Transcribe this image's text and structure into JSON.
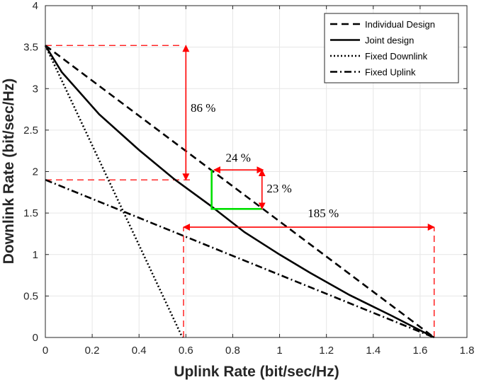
{
  "chart_data": {
    "type": "line",
    "title": "",
    "xlabel": "Uplink Rate (bit/sec/Hz)",
    "ylabel": "Downlink Rate (bit/sec/Hz)",
    "xlim": [
      0,
      1.8
    ],
    "ylim": [
      0,
      4
    ],
    "xticks": [
      0,
      0.2,
      0.4,
      0.6,
      0.8,
      1,
      1.2,
      1.4,
      1.6,
      1.8
    ],
    "xtick_labels": [
      "0",
      "0.2",
      "0.4",
      "0.6",
      "0.8",
      "1",
      "1.2",
      "1.4",
      "1.6",
      "1.8"
    ],
    "yticks": [
      0,
      0.5,
      1,
      1.5,
      2,
      2.5,
      3,
      3.5,
      4
    ],
    "ytick_labels": [
      "0",
      "0.5",
      "1",
      "1.5",
      "2",
      "2.5",
      "3",
      "3.5",
      "4"
    ],
    "grid": true,
    "legend_position": "top-right",
    "series": [
      {
        "name": "Individual Design",
        "style": "dashed",
        "color": "#000000",
        "x": [
          0,
          1.66
        ],
        "y": [
          3.52,
          0
        ]
      },
      {
        "name": "Joint design",
        "style": "solid",
        "color": "#000000",
        "x": [
          0,
          0.07,
          0.23,
          0.4,
          0.55,
          0.7,
          0.85,
          1.0,
          1.13,
          1.3,
          1.48,
          1.66
        ],
        "y": [
          3.52,
          3.2,
          2.69,
          2.26,
          1.91,
          1.6,
          1.27,
          1.0,
          0.78,
          0.51,
          0.26,
          0.0
        ]
      },
      {
        "name": "Fixed Downlink",
        "style": "dotted",
        "color": "#000000",
        "x": [
          0,
          0.585
        ],
        "y": [
          3.52,
          0
        ]
      },
      {
        "name": "Fixed Uplink",
        "style": "dashdot",
        "color": "#000000",
        "x": [
          0,
          1.66
        ],
        "y": [
          1.9,
          0
        ]
      }
    ],
    "highlight": {
      "color": "#00e000",
      "x": [
        0.71,
        0.71,
        0.925
      ],
      "y": [
        2.02,
        1.55,
        1.55
      ]
    },
    "reference_lines": {
      "color": "#ff0000",
      "segments": [
        {
          "x": [
            0,
            0.59
          ],
          "y": [
            3.52,
            3.52
          ]
        },
        {
          "x": [
            0,
            0.63
          ],
          "y": [
            1.9,
            1.9
          ]
        },
        {
          "x": [
            0.59,
            0.59
          ],
          "y": [
            0,
            1.33
          ]
        },
        {
          "x": [
            1.66,
            1.66
          ],
          "y": [
            0,
            1.33
          ]
        }
      ]
    },
    "annotations": [
      {
        "text": "86 %",
        "arrow": {
          "orientation": "vertical",
          "x": 0.6,
          "y": [
            1.9,
            3.52
          ]
        },
        "label_x": 0.62,
        "label_y": 2.72
      },
      {
        "text": "24 %",
        "arrow": {
          "orientation": "horizontal",
          "y": 2.02,
          "x": [
            0.72,
            0.93
          ]
        },
        "label_x": 0.77,
        "label_y": 2.12
      },
      {
        "text": "23 %",
        "arrow": {
          "orientation": "vertical",
          "x": 0.925,
          "y": [
            1.55,
            2.02
          ]
        },
        "label_x": 0.945,
        "label_y": 1.75
      },
      {
        "text": "185 %",
        "arrow": {
          "orientation": "horizontal",
          "y": 1.33,
          "x": [
            0.59,
            1.66
          ]
        },
        "label_x": 1.12,
        "label_y": 1.45
      }
    ]
  }
}
